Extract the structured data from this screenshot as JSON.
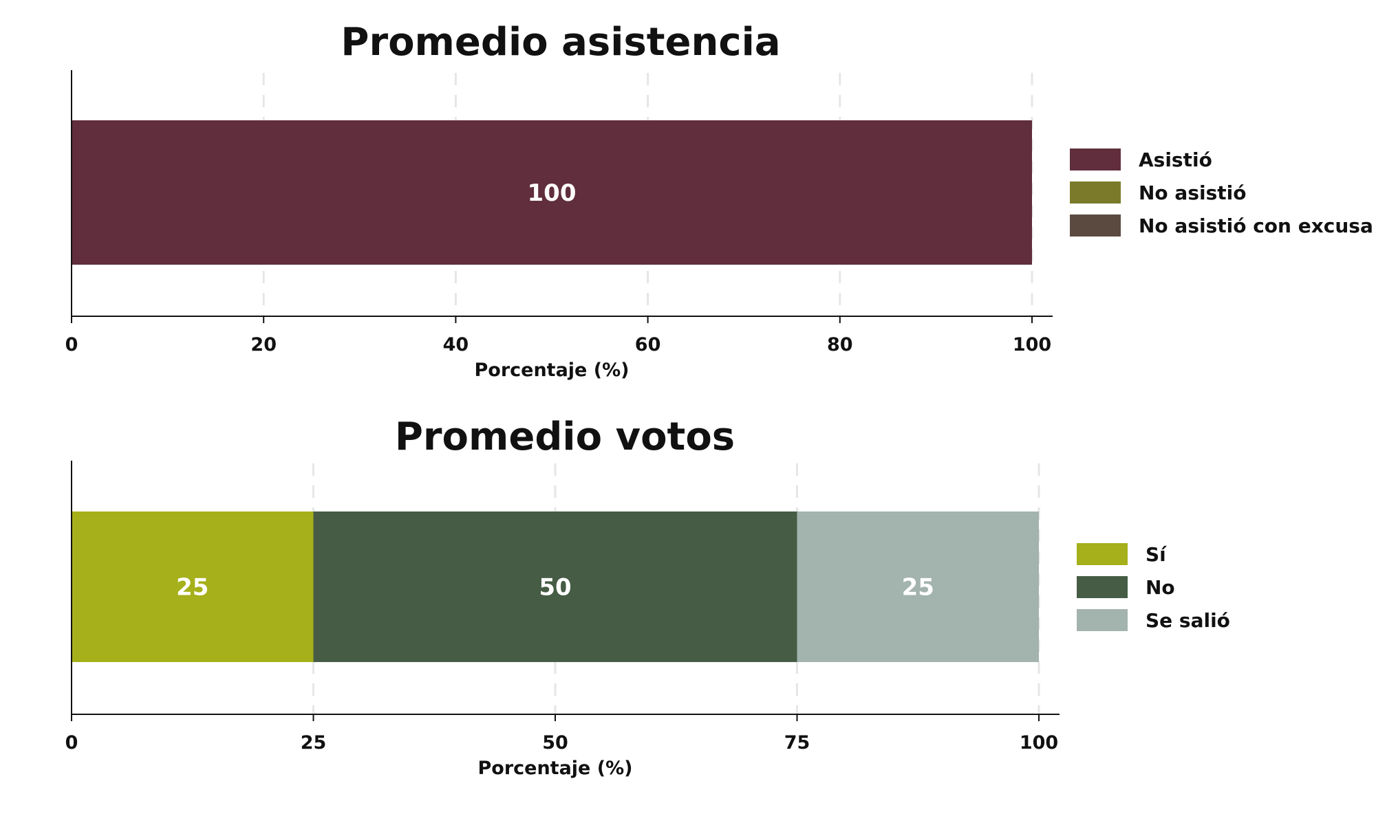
{
  "chart_data": [
    {
      "type": "bar",
      "orientation": "horizontal",
      "stacked": true,
      "title": "Promedio asistencia",
      "xlabel": "Porcentaje (%)",
      "ylabel": "",
      "xlim": [
        0,
        100
      ],
      "xticks": [
        "0",
        "20",
        "40",
        "60",
        "80",
        "100"
      ],
      "grid": "vertical dashed",
      "legend_position": "right",
      "series": [
        {
          "name": "Asistió",
          "value": 100,
          "label": "100",
          "color": "#602E3C"
        },
        {
          "name": "No asistió",
          "value": 0,
          "label": "",
          "color": "#7A7A2A"
        },
        {
          "name": "No asistió con excusa",
          "value": 0,
          "label": "",
          "color": "#5A4A40"
        }
      ]
    },
    {
      "type": "bar",
      "orientation": "horizontal",
      "stacked": true,
      "title": "Promedio votos",
      "xlabel": "Porcentaje (%)",
      "ylabel": "",
      "xlim": [
        0,
        100
      ],
      "xticks": [
        "0",
        "25",
        "50",
        "75",
        "100"
      ],
      "grid": "vertical dashed",
      "legend_position": "right",
      "series": [
        {
          "name": "Sí",
          "value": 25,
          "label": "25",
          "color": "#A5B01A"
        },
        {
          "name": "No",
          "value": 50,
          "label": "50",
          "color": "#465C45"
        },
        {
          "name": "Se salió",
          "value": 25,
          "label": "25",
          "color": "#A3B3AE"
        }
      ]
    }
  ]
}
